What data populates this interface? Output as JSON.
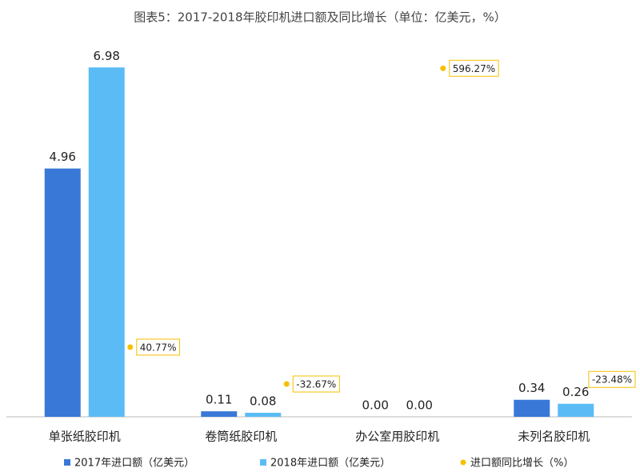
{
  "chart_data": {
    "type": "bar",
    "title": "图表5：2017-2018年胶印机进口额及同比增长（单位：亿美元，%）",
    "categories": [
      "单张纸胶印机",
      "卷筒纸胶印机",
      "办公室用胶印机",
      "未列名胶印机"
    ],
    "series": [
      {
        "name": "2017年进口额（亿美元）",
        "color": "#3a78d8",
        "values": [
          4.96,
          0.11,
          0,
          0.34
        ],
        "value_labels": [
          "4.96",
          "0.11",
          "0.00",
          "0.34"
        ]
      },
      {
        "name": "2018年进口额（亿美元）",
        "color": "#5bbcf5",
        "values": [
          6.98,
          0.08,
          0,
          0.26
        ],
        "value_labels": [
          "6.98",
          "0.08",
          "0.00",
          "0.26"
        ]
      },
      {
        "name": "进口额同比增长（%）",
        "color": "#f5c000",
        "axis": "y2",
        "values": [
          40.77,
          -32.67,
          596.27,
          -23.48
        ],
        "value_labels": [
          "40.77%",
          "-32.67%",
          "596.27%",
          "-23.48%"
        ]
      }
    ],
    "ylim": [
      0,
      7
    ],
    "y2lim": [
      -98,
      600
    ]
  }
}
